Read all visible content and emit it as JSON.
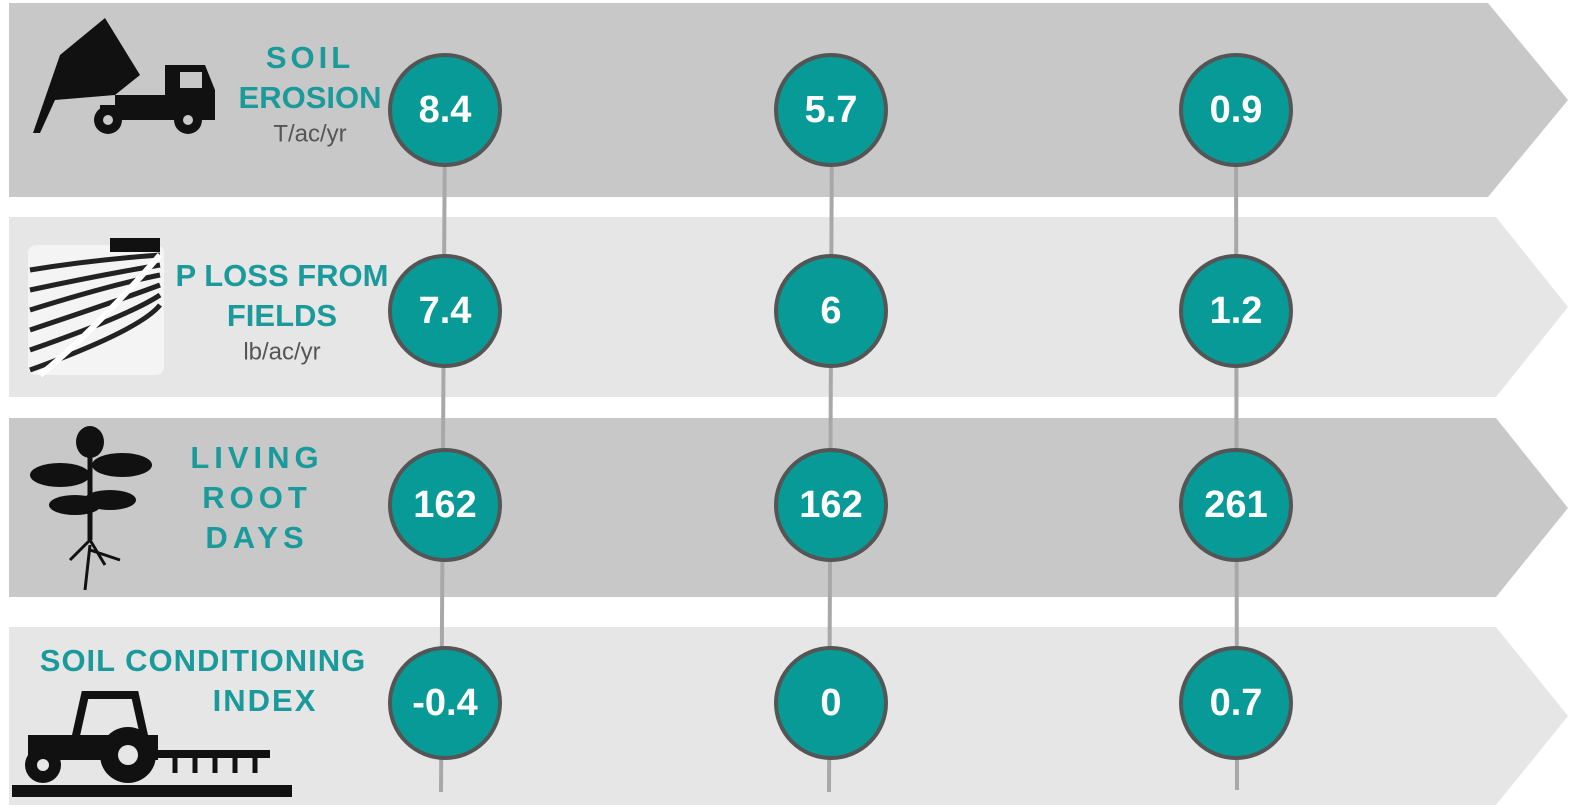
{
  "rows": [
    {
      "label": [
        "SOIL",
        "EROSION"
      ],
      "unit": "T/ac/yr",
      "values": [
        8.4,
        5.7,
        0.9
      ]
    },
    {
      "label": [
        "P LOSS FROM",
        "FIELDS"
      ],
      "unit": "lb/ac/yr",
      "values": [
        7.4,
        6,
        1.2
      ]
    },
    {
      "label": [
        "LIVING",
        "ROOT",
        "DAYS"
      ],
      "values": [
        162,
        162,
        261
      ]
    },
    {
      "label": [
        "SOIL CONDITIONING",
        "INDEX"
      ],
      "values": [
        -0.4,
        0,
        0.7
      ]
    }
  ]
}
